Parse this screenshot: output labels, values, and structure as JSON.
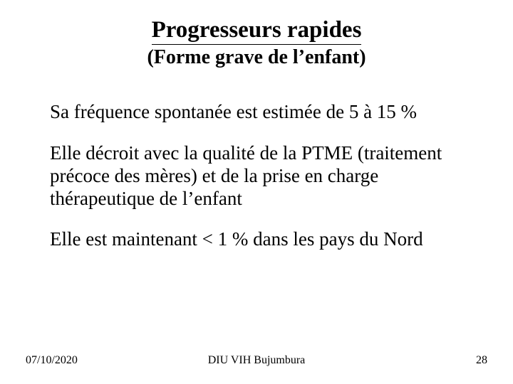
{
  "colors": {
    "background": "#ffffff",
    "text": "#000000"
  },
  "typography": {
    "font_family": "Times New Roman",
    "title_main_fontsize": 33,
    "title_sub_fontsize": 28,
    "body_fontsize": 27,
    "footer_fontsize": 16
  },
  "title": {
    "main": "Progresseurs rapides",
    "sub": "(Forme grave de l’enfant)"
  },
  "paragraphs": [
    "Sa  fréquence spontanée est estimée de 5 à 15 %",
    "Elle décroit avec la qualité de la PTME (traitement précoce des mères) et de la prise en charge thérapeutique de l’enfant",
    "Elle est maintenant < 1 % dans les pays du Nord"
  ],
  "footer": {
    "date": "07/10/2020",
    "center": "DIU VIH Bujumbura",
    "page": "28"
  }
}
